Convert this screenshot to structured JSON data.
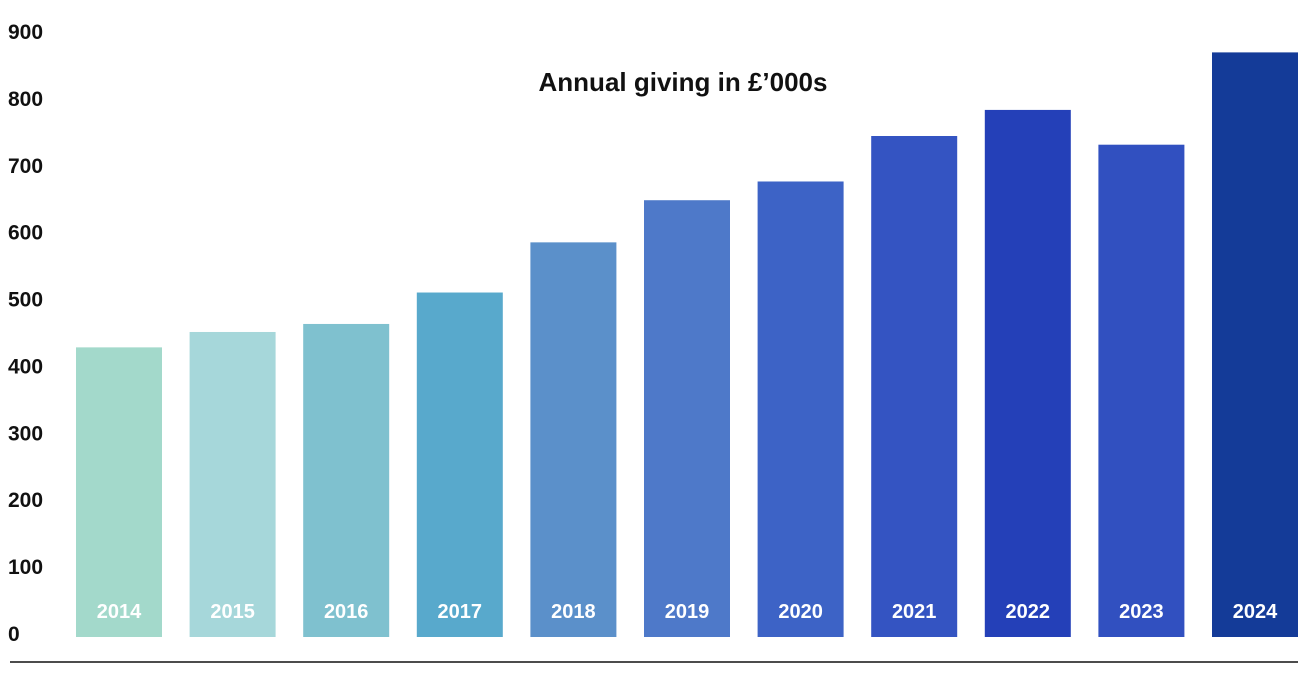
{
  "chart_data": {
    "type": "bar",
    "title": "Annual giving in £’000s",
    "xlabel": "",
    "ylabel": "",
    "categories": [
      "2014",
      "2015",
      "2016",
      "2017",
      "2018",
      "2019",
      "2020",
      "2021",
      "2022",
      "2023",
      "2024"
    ],
    "values": [
      433,
      456,
      468,
      515,
      590,
      653,
      681,
      749,
      788,
      736,
      874
    ],
    "bar_colors": [
      "#a3d9cb",
      "#a6d7da",
      "#7fc1cf",
      "#58a9cc",
      "#5b90ca",
      "#4e79c9",
      "#3d63c6",
      "#3454c2",
      "#2440b8",
      "#3150c0",
      "#143b98"
    ],
    "ylim": [
      0,
      900
    ],
    "yticks": [
      "0",
      "100",
      "200",
      "300",
      "400",
      "500",
      "600",
      "700",
      "800",
      "900"
    ],
    "grid": false,
    "legend": "none"
  }
}
